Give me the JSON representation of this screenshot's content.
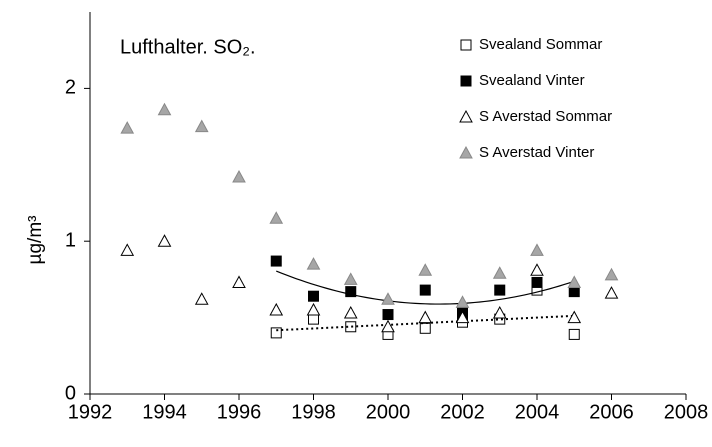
{
  "chart_data": {
    "type": "scatter",
    "title": "Lufthalter. SO₂.",
    "y_label": "µg/m³",
    "x": [
      1993,
      1994,
      1995,
      1996,
      1997,
      1998,
      1999,
      2000,
      2001,
      2002,
      2003,
      2004,
      2005,
      2006
    ],
    "xlim": [
      1992,
      2008
    ],
    "xticks": [
      1992,
      1994,
      1996,
      1998,
      2000,
      2002,
      2004,
      2006,
      2008
    ],
    "ylim": [
      0,
      2.5
    ],
    "yticks": [
      0,
      1,
      2
    ],
    "grid": false,
    "legend": "top-right",
    "series": [
      {
        "name": "Svealand Sommar",
        "marker": "square",
        "filled": false,
        "color": "#000000",
        "trend": "linear",
        "values": [
          null,
          null,
          null,
          null,
          0.4,
          0.49,
          0.44,
          0.39,
          0.43,
          0.47,
          0.49,
          0.68,
          0.39,
          null
        ]
      },
      {
        "name": "Svealand Vinter",
        "marker": "square",
        "filled": true,
        "color": "#000000",
        "trend": "poly2",
        "values": [
          null,
          null,
          null,
          null,
          0.87,
          0.64,
          0.67,
          0.52,
          0.68,
          0.53,
          0.68,
          0.73,
          0.67,
          null
        ]
      },
      {
        "name": "S Averstad Sommar",
        "marker": "triangle",
        "filled": false,
        "color": "#000000",
        "values": [
          0.94,
          1.0,
          0.62,
          0.73,
          0.55,
          0.55,
          0.53,
          0.44,
          0.5,
          0.5,
          0.53,
          0.81,
          0.5,
          0.66
        ]
      },
      {
        "name": "S Averstad Vinter",
        "marker": "triangle",
        "filled": true,
        "color": "#a6a6a6",
        "values": [
          1.74,
          1.86,
          1.75,
          1.42,
          1.15,
          0.85,
          0.75,
          0.62,
          0.81,
          0.6,
          0.79,
          0.94,
          0.73,
          0.78
        ]
      }
    ]
  }
}
